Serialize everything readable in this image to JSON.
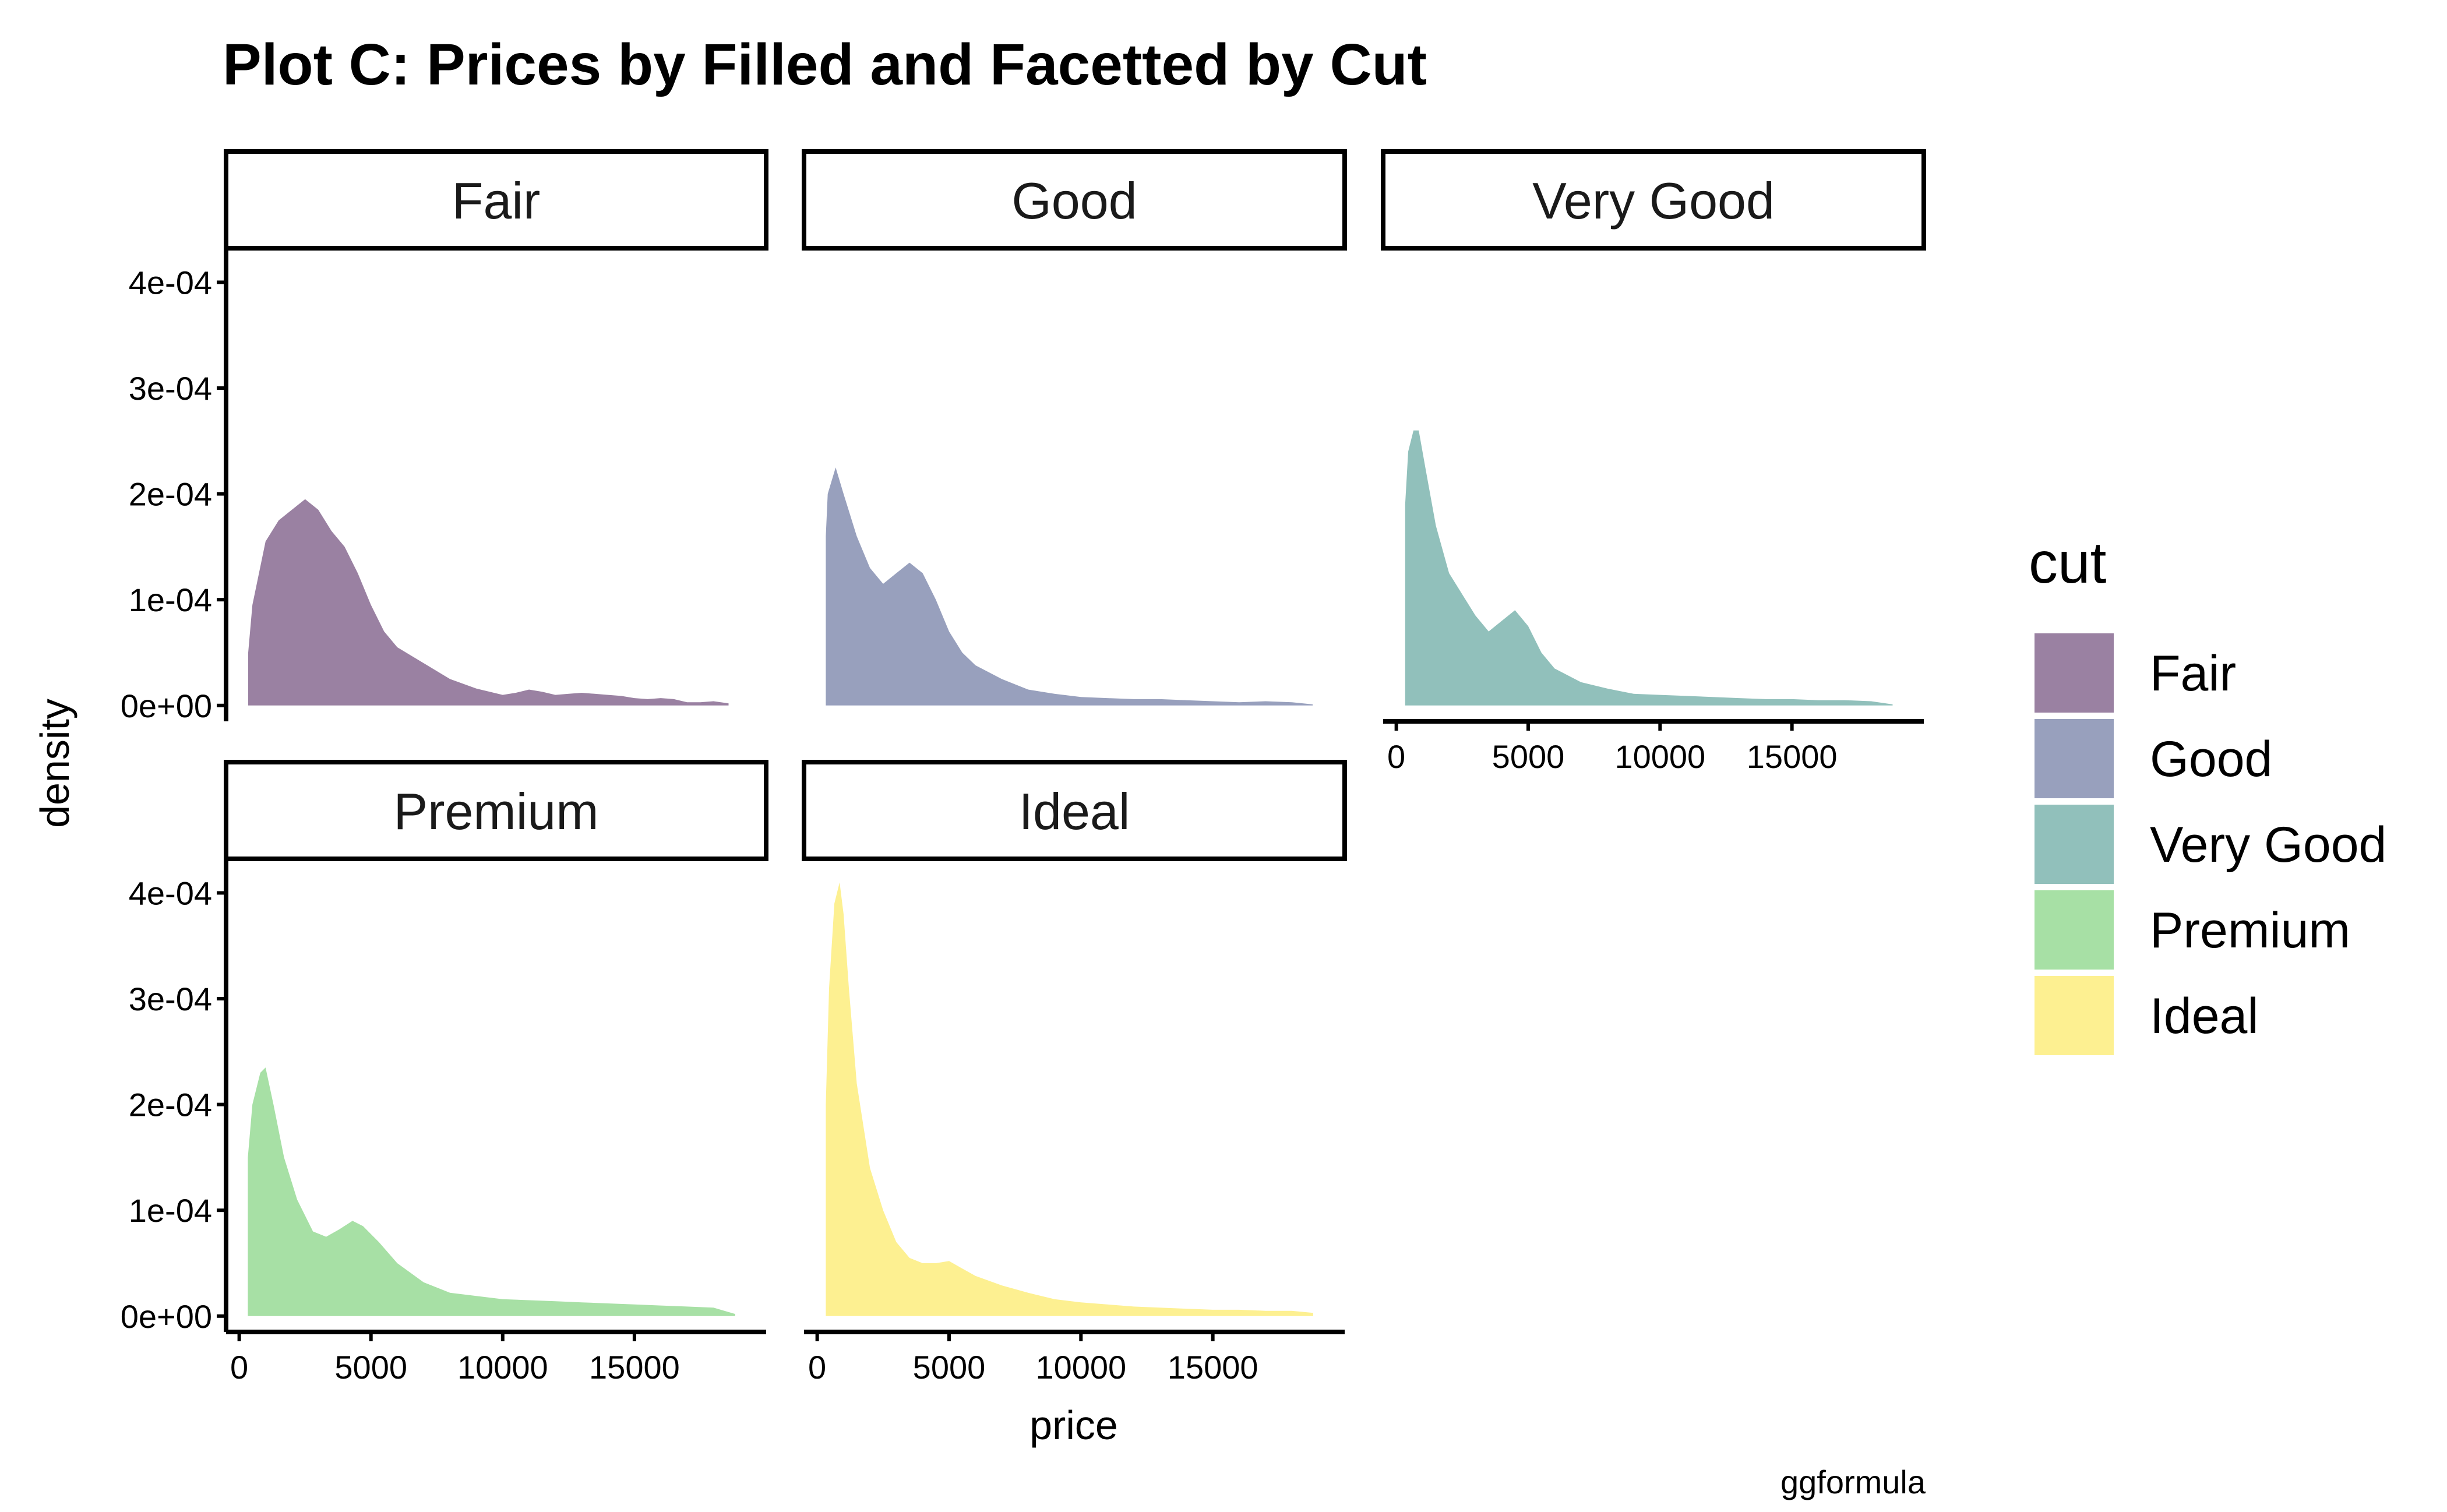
{
  "chart_data": {
    "type": "area",
    "title": "Plot C: Prices by Filled and Facetted by Cut",
    "xlabel": "price",
    "ylabel": "density",
    "caption": "ggformula",
    "xlim": [
      -500,
      20000
    ],
    "ylim": [
      -1.5e-05,
      0.00043
    ],
    "x_ticks": [
      0,
      5000,
      10000,
      15000
    ],
    "x_tick_labels": [
      "0",
      "5000",
      "10000",
      "15000"
    ],
    "y_ticks": [
      0,
      0.0001,
      0.0002,
      0.0003,
      0.0004
    ],
    "y_tick_labels": [
      "0e+00",
      "1e-04",
      "2e-04",
      "3e-04",
      "4e-04"
    ],
    "grid": false,
    "legend": {
      "title": "cut",
      "placement": "right"
    },
    "series": [
      {
        "name": "Fair",
        "color": "#9a81a2",
        "x": [
          340,
          500,
          1000,
          1500,
          2000,
          2500,
          3000,
          3500,
          4000,
          4500,
          5000,
          5500,
          6000,
          7000,
          8000,
          9000,
          10000,
          10500,
          11000,
          11500,
          12000,
          12500,
          13000,
          13500,
          14000,
          14500,
          15000,
          15500,
          16000,
          16500,
          17000,
          17500,
          18000,
          18574
        ],
        "y": [
          5e-05,
          9.5e-05,
          0.000155,
          0.000175,
          0.000185,
          0.000195,
          0.000185,
          0.000165,
          0.00015,
          0.000125,
          9.5e-05,
          7e-05,
          5.5e-05,
          4e-05,
          2.5e-05,
          1.6e-05,
          1e-05,
          1.2e-05,
          1.5e-05,
          1.3e-05,
          1e-05,
          1.1e-05,
          1.2e-05,
          1.1e-05,
          1e-05,
          9e-06,
          7e-06,
          6e-06,
          7e-06,
          6e-06,
          3e-06,
          3e-06,
          4e-06,
          2e-06
        ]
      },
      {
        "name": "Good",
        "color": "#98a0bd",
        "x": [
          327,
          400,
          700,
          1000,
          1500,
          2000,
          2500,
          3000,
          3500,
          4000,
          4500,
          5000,
          5500,
          6000,
          7000,
          8000,
          9000,
          10000,
          11000,
          12000,
          13000,
          14000,
          15000,
          16000,
          17000,
          18000,
          18788
        ],
        "y": [
          0.00016,
          0.0002,
          0.000225,
          0.0002,
          0.00016,
          0.00013,
          0.000115,
          0.000125,
          0.000135,
          0.000125,
          0.0001,
          7e-05,
          5e-05,
          3.8e-05,
          2.5e-05,
          1.5e-05,
          1.1e-05,
          8e-06,
          7e-06,
          6e-06,
          6e-06,
          5e-06,
          4e-06,
          3e-06,
          4e-06,
          3e-06,
          1e-06
        ]
      },
      {
        "name": "Very Good",
        "color": "#91c0bb",
        "x": [
          336,
          450,
          650,
          850,
          1100,
          1500,
          2000,
          2500,
          3000,
          3500,
          4000,
          4500,
          5000,
          5500,
          6000,
          7000,
          8000,
          9000,
          10000,
          11000,
          12000,
          13000,
          14000,
          15000,
          16000,
          17000,
          18000,
          18818
        ],
        "y": [
          0.00019,
          0.00024,
          0.00026,
          0.00026,
          0.000225,
          0.00017,
          0.000125,
          0.000105,
          8.5e-05,
          7e-05,
          8e-05,
          9e-05,
          7.5e-05,
          5e-05,
          3.5e-05,
          2.2e-05,
          1.6e-05,
          1.1e-05,
          1e-05,
          9e-06,
          8e-06,
          7e-06,
          6e-06,
          6e-06,
          5e-06,
          5e-06,
          4e-06,
          1e-06
        ]
      },
      {
        "name": "Premium",
        "color": "#a7e0a5",
        "x": [
          326,
          500,
          800,
          1000,
          1300,
          1700,
          2200,
          2800,
          3300,
          3800,
          4300,
          4700,
          5300,
          6000,
          7000,
          8000,
          9000,
          10000,
          11000,
          12000,
          13000,
          14000,
          15000,
          16000,
          17000,
          18000,
          18823
        ],
        "y": [
          0.00015,
          0.0002,
          0.00023,
          0.000235,
          0.0002,
          0.00015,
          0.00011,
          8e-05,
          7.5e-05,
          8.2e-05,
          9e-05,
          8.5e-05,
          7e-05,
          5e-05,
          3.2e-05,
          2.2e-05,
          1.9e-05,
          1.6e-05,
          1.5e-05,
          1.4e-05,
          1.3e-05,
          1.2e-05,
          1.1e-05,
          1e-05,
          9e-06,
          8e-06,
          2e-06
        ]
      },
      {
        "name": "Ideal",
        "color": "#fdf091",
        "x": [
          326,
          450,
          650,
          850,
          1000,
          1200,
          1500,
          2000,
          2500,
          3000,
          3500,
          4000,
          4500,
          5000,
          5500,
          6000,
          7000,
          8000,
          9000,
          10000,
          11000,
          12000,
          13000,
          14000,
          15000,
          16000,
          17000,
          18000,
          18806
        ],
        "y": [
          0.0002,
          0.00031,
          0.00039,
          0.00041,
          0.00038,
          0.00031,
          0.00022,
          0.00014,
          0.0001,
          7e-05,
          5.5e-05,
          5e-05,
          5e-05,
          5.2e-05,
          4.5e-05,
          3.8e-05,
          2.9e-05,
          2.2e-05,
          1.6e-05,
          1.3e-05,
          1.1e-05,
          9e-06,
          8e-06,
          7e-06,
          6e-06,
          6e-06,
          5e-06,
          5e-06,
          3e-06
        ]
      }
    ]
  }
}
